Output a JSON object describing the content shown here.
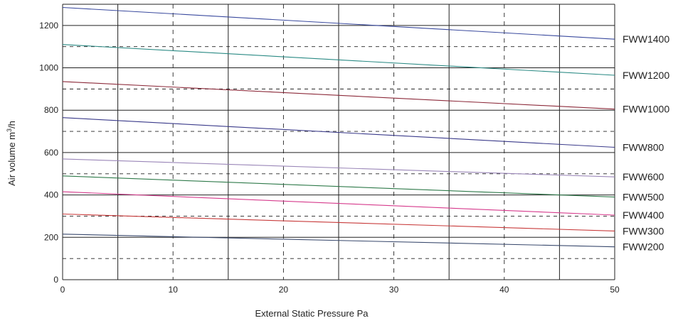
{
  "chart_data": {
    "type": "line",
    "title": "",
    "xlabel": "External Static Pressure Pa",
    "ylabel_main": "Air volume m",
    "ylabel_sup": "3",
    "ylabel_tail": "/h",
    "xlim": [
      0,
      50
    ],
    "ylim": [
      0,
      1300
    ],
    "x_ticks": [
      "0",
      "10",
      "20",
      "30",
      "40",
      "50"
    ],
    "y_ticks": [
      "0",
      "200",
      "400",
      "600",
      "800",
      "1000",
      "1200"
    ],
    "grid": true,
    "legend": "labels at right end of each line",
    "series": [
      {
        "name": "FWW1400",
        "x": [
          0,
          50
        ],
        "values": [
          1285,
          1135
        ],
        "color": "#3a4a9e"
      },
      {
        "name": "FWW1200",
        "x": [
          0,
          50
        ],
        "values": [
          1110,
          965
        ],
        "color": "#2a8a84"
      },
      {
        "name": "FWW1000",
        "x": [
          0,
          50
        ],
        "values": [
          935,
          805
        ],
        "color": "#8c2a3a"
      },
      {
        "name": "FWW800",
        "x": [
          0,
          50
        ],
        "values": [
          765,
          625
        ],
        "color": "#3a3a8a"
      },
      {
        "name": "FWW600",
        "x": [
          0,
          50
        ],
        "values": [
          570,
          485
        ],
        "color": "#9a86b8"
      },
      {
        "name": "FWW500",
        "x": [
          0,
          50
        ],
        "values": [
          490,
          390
        ],
        "color": "#2f7a4a"
      },
      {
        "name": "FWW400",
        "x": [
          0,
          50
        ],
        "values": [
          415,
          305
        ],
        "color": "#d63a8c"
      },
      {
        "name": "FWW300",
        "x": [
          0,
          50
        ],
        "values": [
          310,
          230
        ],
        "color": "#c83a3a"
      },
      {
        "name": "FWW200",
        "x": [
          0,
          50
        ],
        "values": [
          215,
          155
        ],
        "color": "#3a4a6e"
      }
    ]
  }
}
